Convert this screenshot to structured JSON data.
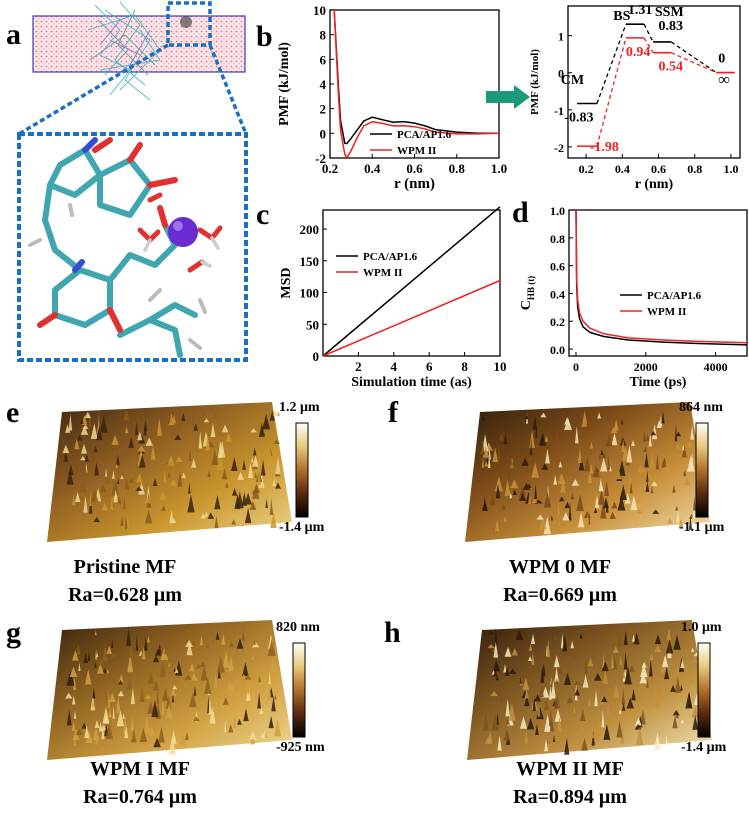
{
  "panel_labels": {
    "a": "a",
    "b": "b",
    "c": "c",
    "d": "d",
    "e": "e",
    "f": "f",
    "g": "g",
    "h": "h"
  },
  "chart_data": [
    {
      "id": "b",
      "type": "line",
      "xlabel": "r (nm)",
      "ylabel": "PMF (kJ/mol)",
      "xlim": [
        0.2,
        1.0
      ],
      "ylim": [
        -2,
        10
      ],
      "xticks": [
        "0.2",
        "0.4",
        "0.6",
        "0.8",
        "1.0"
      ],
      "yticks": [
        "-2",
        "0",
        "2",
        "4",
        "6",
        "8",
        "10"
      ],
      "legend_position": "bottom-right",
      "series": [
        {
          "name": "PCA/AP1.6",
          "color": "#000000",
          "x": [
            0.22,
            0.24,
            0.25,
            0.27,
            0.28,
            0.3,
            0.33,
            0.36,
            0.4,
            0.45,
            0.5,
            0.55,
            0.6,
            0.65,
            0.7,
            0.8,
            0.9,
            1.0
          ],
          "y": [
            10,
            3.8,
            1.0,
            -0.8,
            -0.83,
            -0.4,
            0.3,
            1.0,
            1.31,
            1.1,
            0.9,
            0.95,
            0.83,
            0.6,
            0.3,
            0.1,
            0.0,
            0.0
          ]
        },
        {
          "name": "WPM II",
          "color": "#ee2222",
          "x": [
            0.22,
            0.24,
            0.25,
            0.27,
            0.28,
            0.3,
            0.33,
            0.36,
            0.4,
            0.45,
            0.5,
            0.55,
            0.6,
            0.65,
            0.7,
            0.8,
            0.9,
            1.0
          ],
          "y": [
            10,
            3.2,
            0.2,
            -1.7,
            -1.98,
            -1.4,
            -0.3,
            0.6,
            0.94,
            0.8,
            0.6,
            0.62,
            0.54,
            0.35,
            0.1,
            -0.05,
            -0.05,
            0.0
          ]
        }
      ]
    },
    {
      "id": "b-inset",
      "type": "line",
      "xlabel": "r (nm)",
      "ylabel": "PMF (kJ/mol)",
      "xlim": [
        0.1,
        1.05
      ],
      "ylim": [
        -2.3,
        1.8
      ],
      "xticks": [
        "0.2",
        "0.4",
        "0.6",
        "0.8",
        "1.0"
      ],
      "yticks": [
        "-2",
        "-1",
        "0",
        "1"
      ],
      "state_labels": [
        "CM",
        "BS",
        "SSM",
        "∞"
      ],
      "series": [
        {
          "name": "",
          "color": "#000000",
          "dashed": true,
          "levels": [
            [
              0.15,
              0.26,
              -0.83
            ],
            [
              0.42,
              0.52,
              1.31
            ],
            [
              0.57,
              0.67,
              0.83
            ],
            [
              0.92,
              1.02,
              0.0
            ]
          ],
          "value_labels": [
            "-0.83",
            "1.31",
            "0.83",
            "0"
          ]
        },
        {
          "name": "",
          "color": "#ee2222",
          "dashed": true,
          "levels": [
            [
              0.15,
              0.26,
              -1.98
            ],
            [
              0.42,
              0.52,
              0.94
            ],
            [
              0.57,
              0.67,
              0.54
            ],
            [
              0.92,
              1.02,
              0.0
            ]
          ],
          "value_labels": [
            "-1.98",
            "0.94",
            "0.54",
            ""
          ]
        }
      ]
    },
    {
      "id": "c",
      "type": "line",
      "xlabel": "Simulation time (as)",
      "ylabel": "MSD",
      "xlim": [
        0,
        10
      ],
      "ylim": [
        0,
        230
      ],
      "xticks": [
        "2",
        "4",
        "6",
        "8",
        "10"
      ],
      "yticks": [
        "0",
        "50",
        "100",
        "150",
        "200"
      ],
      "legend_position": "top-left",
      "series": [
        {
          "name": "PCA/AP1.6",
          "color": "#000000",
          "x": [
            0,
            10
          ],
          "y": [
            0,
            235
          ]
        },
        {
          "name": "WPM II",
          "color": "#ee2222",
          "x": [
            0,
            10
          ],
          "y": [
            0,
            119
          ]
        }
      ]
    },
    {
      "id": "d",
      "type": "line",
      "xlabel": "Time (ps)",
      "ylabel": "C_HB (t)",
      "ylabel_main": "C",
      "ylabel_sub": "HB (t)",
      "xlim": [
        -200,
        4900
      ],
      "ylim": [
        -0.05,
        1.0
      ],
      "xticks": [
        "0",
        "2000",
        "4000"
      ],
      "yticks": [
        "0.0",
        "0.2",
        "0.4",
        "0.6",
        "0.8",
        "1.0"
      ],
      "legend_position": "center-right",
      "series": [
        {
          "name": "PCA/AP1.6",
          "color": "#000000",
          "x": [
            0,
            20,
            50,
            100,
            200,
            400,
            800,
            1500,
            2500,
            3500,
            4900
          ],
          "y": [
            1.0,
            0.45,
            0.3,
            0.22,
            0.16,
            0.12,
            0.09,
            0.065,
            0.05,
            0.04,
            0.03
          ]
        },
        {
          "name": "WPM II",
          "color": "#ee2222",
          "x": [
            0,
            20,
            50,
            100,
            200,
            400,
            800,
            1500,
            2500,
            3500,
            4900
          ],
          "y": [
            1.0,
            0.5,
            0.35,
            0.26,
            0.2,
            0.15,
            0.11,
            0.08,
            0.065,
            0.055,
            0.045
          ]
        }
      ]
    }
  ],
  "afm_panels": [
    {
      "id": "e",
      "sample": "Pristine MF",
      "ra": "Ra=0.628 μm",
      "cb_max": "1.2 μm",
      "cb_min": "-1.4 μm"
    },
    {
      "id": "f",
      "sample": "WPM 0 MF",
      "ra": "Ra=0.669 μm",
      "cb_max": "864 nm",
      "cb_min": "-1.1 μm"
    },
    {
      "id": "g",
      "sample": "WPM I MF",
      "ra": "Ra=0.764 μm",
      "cb_max": "820 nm",
      "cb_min": "-925 nm"
    },
    {
      "id": "h",
      "sample": "WPM II MF",
      "ra": "Ra=0.894 μm",
      "cb_max": "1.0 μm",
      "cb_min": "-1.4 μm"
    }
  ],
  "colors": {
    "accent_blue": "#1a6fc4",
    "arrow_green": "#1a9a7a",
    "red_series": "#ee2222"
  }
}
